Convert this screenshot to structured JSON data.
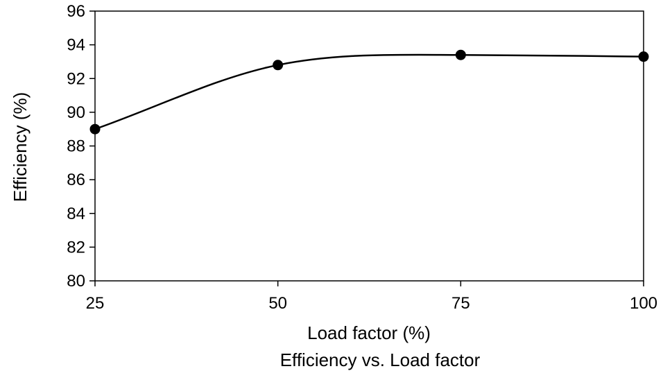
{
  "chart_data": {
    "type": "line",
    "x": [
      25,
      50,
      75,
      100
    ],
    "series": [
      {
        "values": [
          89.0,
          92.8,
          93.4,
          93.3
        ]
      }
    ],
    "xlabel": "Load factor (%)",
    "ylabel": "Efficiency (%)",
    "caption": "Efficiency vs. Load factor",
    "xlim": [
      25,
      100
    ],
    "ylim": [
      80,
      96
    ],
    "xticks": [
      "25",
      "50",
      "75",
      "100"
    ],
    "yticks": [
      "80",
      "82",
      "84",
      "86",
      "88",
      "90",
      "92",
      "94",
      "96"
    ],
    "grid": false,
    "smooth": true,
    "line_color": "#000000",
    "marker_color": "#000000"
  }
}
